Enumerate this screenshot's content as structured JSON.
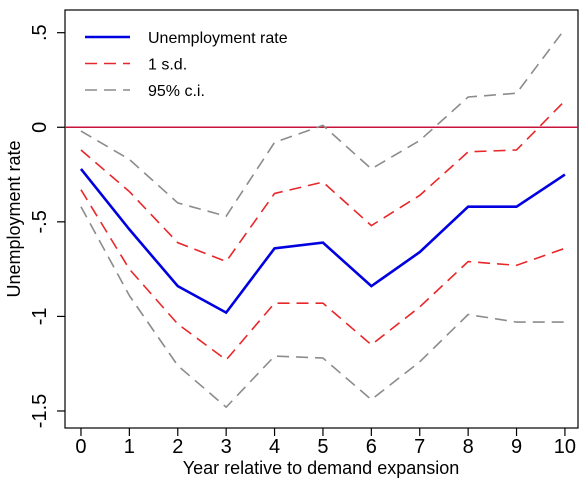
{
  "chart_data": {
    "type": "line",
    "x_label": "Year relative to demand expansion",
    "y_label": "Unemployment rate",
    "x": [
      0,
      1,
      2,
      3,
      4,
      5,
      6,
      7,
      8,
      9,
      10
    ],
    "series": [
      {
        "name": "Unemployment rate",
        "color": "#0000e0",
        "dashed": false,
        "values": [
          -0.22,
          -0.54,
          -0.84,
          -0.98,
          -0.64,
          -0.61,
          -0.84,
          -0.66,
          -0.42,
          -0.42,
          -0.25
        ]
      },
      {
        "name": "1 s.d.",
        "color": "#e8272a",
        "dashed": true,
        "values": [
          -0.12,
          -0.34,
          -0.61,
          -0.71,
          -0.35,
          -0.29,
          -0.52,
          -0.36,
          -0.13,
          -0.12,
          0.14
        ]
      },
      {
        "name": "95% c.i.",
        "color": "#8c8c8c",
        "dashed": true,
        "values": [
          -0.02,
          -0.17,
          -0.4,
          -0.47,
          -0.08,
          0.01,
          -0.22,
          -0.07,
          0.16,
          0.18,
          0.52
        ]
      },
      {
        "color": "#e8272a",
        "dashed": true,
        "values": [
          -0.33,
          -0.75,
          -1.04,
          -1.23,
          -0.93,
          -0.93,
          -1.15,
          -0.95,
          -0.71,
          -0.73,
          -0.64
        ]
      },
      {
        "color": "#8c8c8c",
        "dashed": true,
        "values": [
          -0.42,
          -0.89,
          -1.26,
          -1.48,
          -1.21,
          -1.22,
          -1.44,
          -1.24,
          -0.99,
          -1.03,
          -1.03
        ]
      }
    ],
    "hline": {
      "value": 0,
      "color": "#c8143c"
    },
    "xlim": [
      -0.33,
      10.27
    ],
    "ylim": [
      -1.59,
      0.62
    ],
    "xticks": [
      0,
      1,
      2,
      3,
      4,
      5,
      6,
      7,
      8,
      9,
      10
    ],
    "yticks": [
      {
        "value": 0.5,
        "label": ".5"
      },
      0,
      {
        "value": -0.5,
        "label": "-.5"
      },
      -1,
      {
        "value": -1.5,
        "label": "-1.5"
      }
    ],
    "legend": "upper left"
  }
}
